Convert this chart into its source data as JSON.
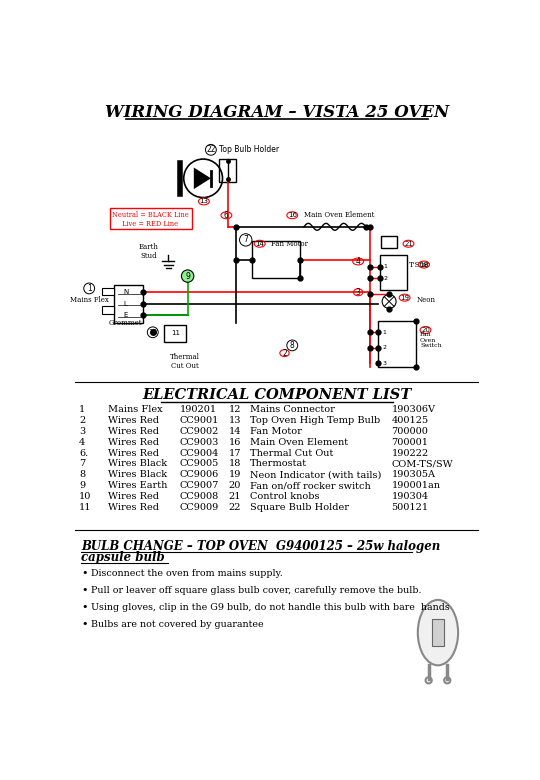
{
  "title": "WIRING DIAGRAM – VISTA 25 OVEN",
  "bg_color": "#ffffff",
  "section2_title": "ELECTRICAL COMPONENT LIST",
  "components_left": [
    [
      "1",
      "Mains Flex",
      "190201"
    ],
    [
      "2",
      "Wires Red",
      "CC9001"
    ],
    [
      "3",
      "Wires Red",
      "CC9002"
    ],
    [
      "4",
      "Wires Red",
      "CC9003"
    ],
    [
      "6.",
      "Wires Red",
      "CC9004"
    ],
    [
      "7",
      "Wires Black",
      "CC9005"
    ],
    [
      "8",
      "Wires Black",
      "CC9006"
    ],
    [
      "9",
      "Wires Earth",
      "CC9007"
    ],
    [
      "10",
      "Wires Red",
      "CC9008"
    ],
    [
      "11",
      "Wires Red",
      "CC9009"
    ]
  ],
  "components_right": [
    [
      "12",
      "Mains Connector",
      "190306V"
    ],
    [
      "13",
      "Top Oven High Temp Bulb",
      "400125"
    ],
    [
      "14",
      "Fan Motor",
      "700000"
    ],
    [
      "16",
      "Main Oven Element",
      "700001"
    ],
    [
      "17",
      "Thermal Cut Out",
      "190222"
    ],
    [
      "18",
      "Thermostat",
      "COM-TS/SW"
    ],
    [
      "19",
      "Neon Indicator (with tails)",
      "190305A"
    ],
    [
      "20",
      "Fan on/off rocker switch",
      "190001an"
    ],
    [
      "21",
      "Control knobs",
      "190304"
    ],
    [
      "22",
      "Square Bulb Holder",
      "500121"
    ]
  ],
  "bulb_title_line1": "BULB CHANGE – TOP OVEN  G9400125 – 25w halogen ",
  "bulb_title_line2": "capsule bulb",
  "bullet_points": [
    "Disconnect the oven from mains supply.",
    "Pull or leaver off square glass bulb cover, carefully remove the bulb.",
    "Using gloves, clip in the G9 bulb, do not handle this bulb with bare  hands",
    "Bulbs are not covered by guarantee"
  ]
}
